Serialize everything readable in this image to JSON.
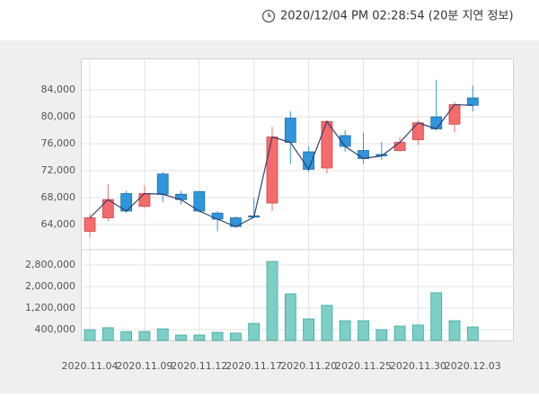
{
  "header": {
    "timestamp": "2020/12/04 PM 02:28:54 (20분 지연 정보)"
  },
  "chart_data": [
    {
      "type": "candlestick",
      "open": [
        63000,
        65000,
        68600,
        66700,
        71500,
        68500,
        68900,
        65700,
        65000,
        65300,
        67200,
        79800,
        74800,
        72400,
        77200,
        75000,
        74400,
        75000,
        76600,
        80000,
        78900,
        82800
      ],
      "high": [
        65600,
        70000,
        69000,
        69800,
        71800,
        69000,
        69000,
        66000,
        65200,
        68000,
        78500,
        80800,
        75600,
        79500,
        78000,
        77600,
        76200,
        77000,
        79500,
        85500,
        82200,
        84600
      ],
      "low": [
        62000,
        64500,
        65700,
        66500,
        67300,
        67000,
        65800,
        63000,
        63500,
        65000,
        66000,
        73000,
        71800,
        71600,
        74800,
        73000,
        73600,
        74800,
        75800,
        78000,
        77700,
        80800
      ],
      "close": [
        65000,
        67700,
        66000,
        68600,
        68500,
        67700,
        66000,
        64800,
        63700,
        65100,
        77000,
        76200,
        72200,
        79300,
        75600,
        73800,
        74200,
        76200,
        79100,
        78200,
        81800,
        81700
      ],
      "up_color": "#f56b6b",
      "down_color": "#2f95dc",
      "line_color": "#34406e",
      "ylim": [
        61000,
        88000
      ],
      "yticks": [
        {
          "value": 64000,
          "label": "64,000"
        },
        {
          "value": 68000,
          "label": "68,000"
        },
        {
          "value": 72000,
          "label": "72,000"
        },
        {
          "value": 76000,
          "label": "76,000"
        },
        {
          "value": 80000,
          "label": "80,000"
        },
        {
          "value": 84000,
          "label": "84,000"
        }
      ],
      "grid": true
    },
    {
      "type": "bar",
      "categories": [
        "2020.11.04",
        null,
        null,
        "2020.11.09",
        null,
        null,
        "2020.11.12",
        null,
        null,
        "2020.11.17",
        null,
        null,
        "2020.11.20",
        null,
        null,
        "2020.11.25",
        null,
        null,
        "2020.11.30",
        null,
        null,
        "2020.12.03"
      ],
      "values": [
        400000,
        470000,
        330000,
        330000,
        430000,
        200000,
        200000,
        300000,
        270000,
        630000,
        2930000,
        1730000,
        800000,
        1300000,
        730000,
        730000,
        400000,
        530000,
        570000,
        1770000,
        730000,
        500000
      ],
      "color": "#7ccfc6",
      "ylim": [
        0,
        3200000
      ],
      "yticks": [
        {
          "value": 400000,
          "label": "400,000"
        },
        {
          "value": 1200000,
          "label": "1,200,000"
        },
        {
          "value": 2000000,
          "label": "2,000,000"
        },
        {
          "value": 2800000,
          "label": "2,800,000"
        }
      ],
      "grid": true
    }
  ]
}
